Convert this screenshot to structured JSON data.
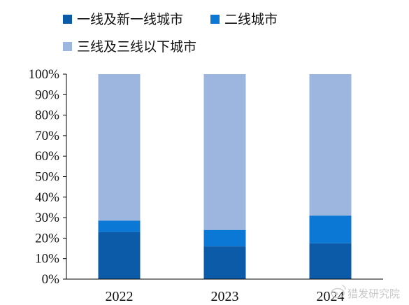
{
  "chart_data": {
    "type": "bar",
    "stacked": true,
    "categories": [
      "2022",
      "2023",
      "2024"
    ],
    "series": [
      {
        "name": "一线及新一线城市",
        "values": [
          23,
          16,
          17.5
        ],
        "color": "#0b5ba8"
      },
      {
        "name": "二线城市",
        "values": [
          5.5,
          8,
          13.5
        ],
        "color": "#0a78d4"
      },
      {
        "name": "三线及三线以下城市",
        "values": [
          71.5,
          76,
          69
        ],
        "color": "#9db6e0"
      }
    ],
    "ylim": [
      0,
      100
    ],
    "yticks": [
      "0%",
      "10%",
      "20%",
      "30%",
      "40%",
      "50%",
      "60%",
      "70%",
      "80%",
      "90%",
      "100%"
    ],
    "legend_position": "top-left",
    "grid": false
  },
  "watermark": {
    "text": "猎发研究院",
    "icon": "weibo-icon",
    "color": "#c8c8c8"
  }
}
